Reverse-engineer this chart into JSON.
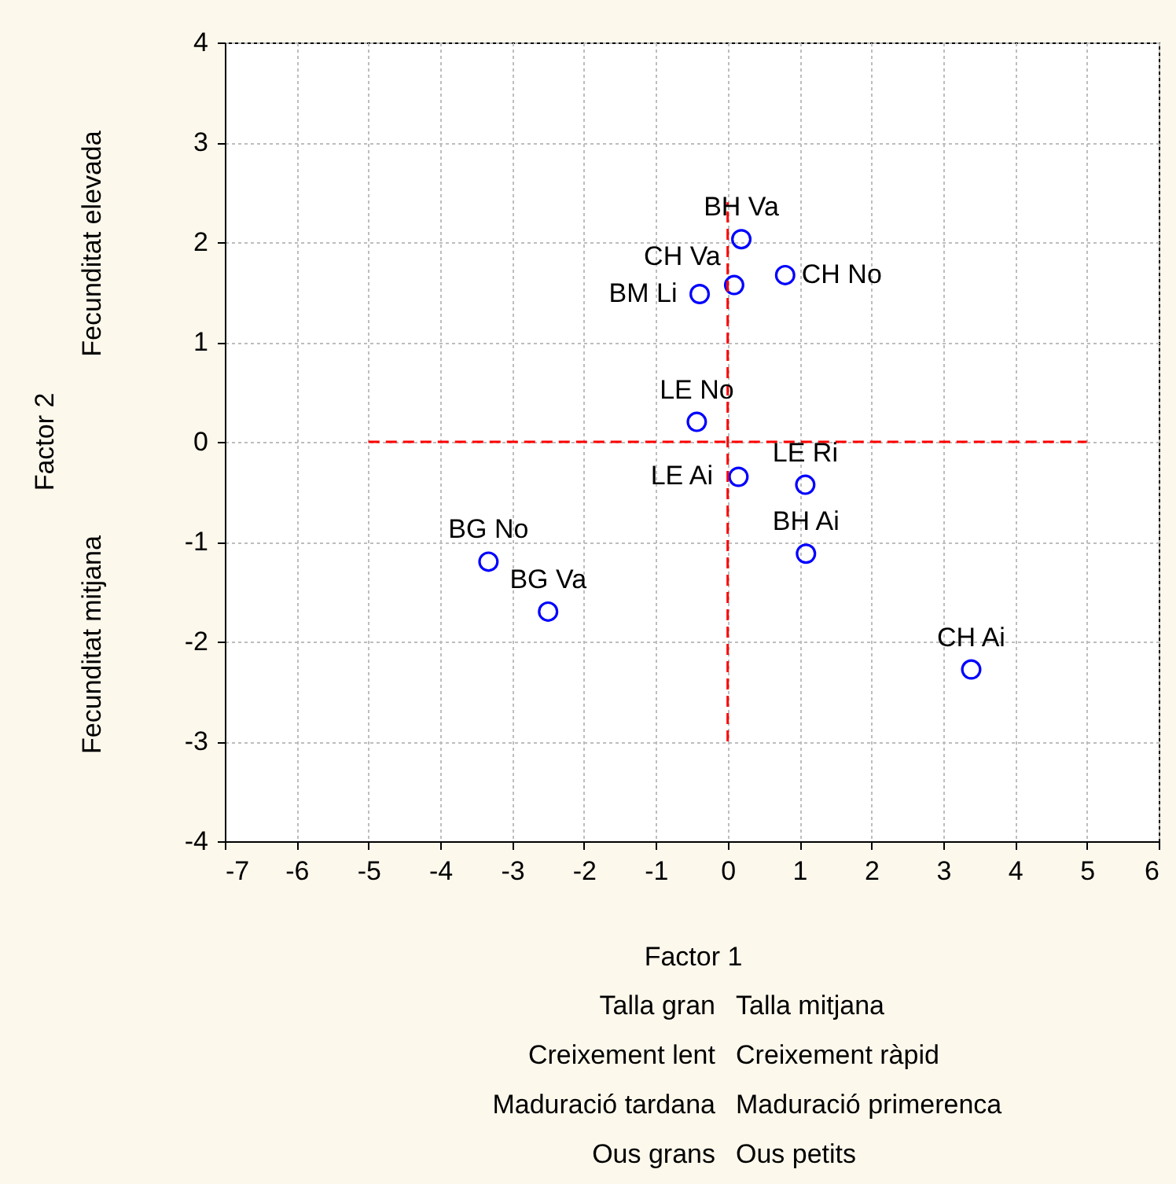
{
  "chart_data": {
    "type": "scatter",
    "xlabel": "Factor 1",
    "ylabel": "Factor 2",
    "xlim": [
      -7,
      6
    ],
    "xticks": [
      -7,
      -6,
      -5,
      -4,
      -3,
      -2,
      -1,
      0,
      1,
      2,
      3,
      4,
      5,
      6
    ],
    "ylim": [
      -4,
      4
    ],
    "yticks": [
      -4,
      -3,
      -2,
      -1,
      0,
      1,
      2,
      3,
      4
    ],
    "grid": true,
    "series": [
      {
        "color": "#0000ff",
        "marker": "circle",
        "x": [
          0.19,
          0.8,
          -0.39,
          0.09,
          -0.43,
          0.15,
          1.08,
          1.09,
          -3.33,
          -2.5,
          3.39
        ],
        "values": [
          2.03,
          1.67,
          1.48,
          1.57,
          0.2,
          -0.35,
          -0.43,
          -1.12,
          -1.2,
          -1.7,
          -2.28
        ]
      },
      {
        "type": "line",
        "color": "#ff0000",
        "line_style": "dashed",
        "marker": "none",
        "x": [
          -5,
          5
        ],
        "values": [
          0,
          0
        ]
      },
      {
        "type": "line",
        "color": "#ff0000",
        "line_style": "dashed",
        "marker": "none",
        "x": [
          0,
          0
        ],
        "values": [
          -3,
          2.4
        ]
      }
    ],
    "annotations": [
      "Fecunditat mitjana",
      "Fecunditat elevada",
      "Talla gran",
      "Talla mitjana",
      "Creixement lent",
      "Creixement ràpid",
      "Maduració tardana",
      "Maduració primerenca",
      "Ous grans",
      "Ous petits",
      {
        "text": "BH Va",
        "x": 0.19,
        "y": 2.03
      },
      {
        "text": "CH No",
        "x": 0.8,
        "y": 1.67
      },
      {
        "text": "BM Li",
        "x": -0.39,
        "y": 1.48
      },
      {
        "text": "CH Va",
        "x": 0.09,
        "y": 1.57
      },
      {
        "text": "LE No",
        "x": -0.43,
        "y": 0.2
      },
      {
        "text": "LE Ai",
        "x": 0.15,
        "y": -0.35
      },
      {
        "text": "LE Ri",
        "x": 1.08,
        "y": -0.43
      },
      {
        "text": "BH Ai",
        "x": 1.09,
        "y": -1.12
      },
      {
        "text": "BG No",
        "x": -3.33,
        "y": -1.2
      },
      {
        "text": "BG Va",
        "x": -2.5,
        "y": -1.7
      },
      {
        "text": "CH Ai",
        "x": 3.39,
        "y": -2.28
      }
    ]
  }
}
